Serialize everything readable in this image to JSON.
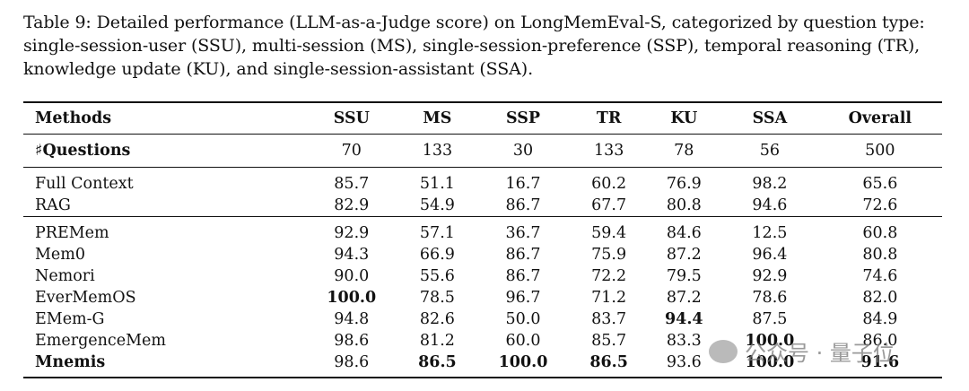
{
  "caption": "Table 9: Detailed performance (LLM-as-a-Judge score) on LongMemEval-S, categorized by question type: single-session-user (SSU), multi-session (MS), single-session-preference (SSP), temporal reasoning (TR), knowledge update (KU), and single-session-assistant (SSA).",
  "headers": [
    "Methods",
    "SSU",
    "MS",
    "SSP",
    "TR",
    "KU",
    "SSA",
    "Overall"
  ],
  "questions": {
    "label": "♯Questions",
    "values": [
      "70",
      "133",
      "30",
      "133",
      "78",
      "56",
      "500"
    ]
  },
  "rows": [
    {
      "method": "Full Context",
      "values": [
        "85.7",
        "51.1",
        "16.7",
        "60.2",
        "76.9",
        "98.2",
        "65.6"
      ],
      "bold": []
    },
    {
      "method": "RAG",
      "values": [
        "82.9",
        "54.9",
        "86.7",
        "67.7",
        "80.8",
        "94.6",
        "72.6"
      ],
      "bold": []
    },
    {
      "method": "PREMem",
      "values": [
        "92.9",
        "57.1",
        "36.7",
        "59.4",
        "84.6",
        "12.5",
        "60.8"
      ],
      "bold": []
    },
    {
      "method": "Mem0",
      "values": [
        "94.3",
        "66.9",
        "86.7",
        "75.9",
        "87.2",
        "96.4",
        "80.8"
      ],
      "bold": []
    },
    {
      "method": "Nemori",
      "values": [
        "90.0",
        "55.6",
        "86.7",
        "72.2",
        "79.5",
        "92.9",
        "74.6"
      ],
      "bold": []
    },
    {
      "method": "EverMemOS",
      "values": [
        "100.0",
        "78.5",
        "96.7",
        "71.2",
        "87.2",
        "78.6",
        "82.0"
      ],
      "bold": [
        0
      ]
    },
    {
      "method": "EMem-G",
      "values": [
        "94.8",
        "82.6",
        "50.0",
        "83.7",
        "94.4",
        "87.5",
        "84.9"
      ],
      "bold": [
        4
      ]
    },
    {
      "method": "EmergenceMem",
      "values": [
        "98.6",
        "81.2",
        "60.0",
        "85.7",
        "83.3",
        "100.0",
        "86.0"
      ],
      "bold": [
        5
      ]
    },
    {
      "method": "Mnemis",
      "values": [
        "98.6",
        "86.5",
        "100.0",
        "86.5",
        "93.6",
        "100.0",
        "91.6"
      ],
      "bold": [
        1,
        2,
        3,
        5,
        6
      ],
      "method_bold": true
    }
  ],
  "watermark": "公众号 · 量子位"
}
